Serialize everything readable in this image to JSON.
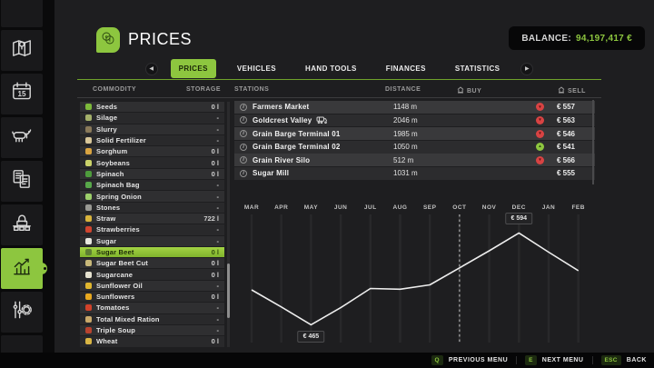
{
  "app": {
    "accent": "#8dc63f",
    "background": "#1e1e20"
  },
  "header": {
    "title": "PRICES",
    "icon": "coins-icon",
    "balance_label": "BALANCE:",
    "balance_value": "94,197,417 €"
  },
  "sidebar": {
    "active_index": 6,
    "calendar_day": "15",
    "items": [
      {
        "name": "blank-top",
        "icon": "none"
      },
      {
        "name": "map",
        "icon": "map-icon"
      },
      {
        "name": "calendar",
        "icon": "calendar-icon"
      },
      {
        "name": "animals",
        "icon": "animal-icon"
      },
      {
        "name": "contracts",
        "icon": "contracts-icon"
      },
      {
        "name": "production",
        "icon": "production-icon"
      },
      {
        "name": "prices",
        "icon": "statistics-icon"
      },
      {
        "name": "settings",
        "icon": "settings-icon"
      },
      {
        "name": "blank-bottom",
        "icon": "none"
      }
    ]
  },
  "tabs": {
    "items": [
      "PRICES",
      "VEHICLES",
      "HAND TOOLS",
      "FINANCES",
      "STATISTICS"
    ],
    "active": "PRICES",
    "left_arrow": "left-arrow-icon",
    "right_arrow": "right-arrow-icon"
  },
  "columns": {
    "commodity": "COMMODITY",
    "storage": "STORAGE",
    "stations": "STATIONS",
    "distance": "DISTANCE",
    "buy": "BUY",
    "sell": "SELL"
  },
  "commodities": [
    {
      "label": "Seeds",
      "storage": "0 l",
      "icon_color": "#7db93b",
      "selected": false
    },
    {
      "label": "Silage",
      "storage": "-",
      "icon_color": "#a4b06a",
      "selected": false
    },
    {
      "label": "Slurry",
      "storage": "-",
      "icon_color": "#8a7a5a",
      "selected": false
    },
    {
      "label": "Solid Fertilizer",
      "storage": "-",
      "icon_color": "#d8c79a",
      "selected": false
    },
    {
      "label": "Sorghum",
      "storage": "0 l",
      "icon_color": "#d9a441",
      "selected": false
    },
    {
      "label": "Soybeans",
      "storage": "0 l",
      "icon_color": "#cbd36a",
      "selected": false
    },
    {
      "label": "Spinach",
      "storage": "0 l",
      "icon_color": "#4e9c3c",
      "selected": false
    },
    {
      "label": "Spinach Bag",
      "storage": "-",
      "icon_color": "#58a84a",
      "selected": false
    },
    {
      "label": "Spring Onion",
      "storage": "-",
      "icon_color": "#9ccf6a",
      "selected": false
    },
    {
      "label": "Stones",
      "storage": "-",
      "icon_color": "#9a9a94",
      "selected": false
    },
    {
      "label": "Straw",
      "storage": "722 l",
      "icon_color": "#d9b43c",
      "selected": false
    },
    {
      "label": "Strawberries",
      "storage": "-",
      "icon_color": "#d0452f",
      "selected": false
    },
    {
      "label": "Sugar",
      "storage": "-",
      "icon_color": "#e8e8e0",
      "selected": false
    },
    {
      "label": "Sugar Beet",
      "storage": "0 l",
      "icon_color": "#5e7f33",
      "selected": true
    },
    {
      "label": "Sugar Beet Cut",
      "storage": "0 l",
      "icon_color": "#c8b87a",
      "selected": false
    },
    {
      "label": "Sugarcane",
      "storage": "0 l",
      "icon_color": "#e6e2d0",
      "selected": false
    },
    {
      "label": "Sunflower Oil",
      "storage": "-",
      "icon_color": "#e0b62f",
      "selected": false
    },
    {
      "label": "Sunflowers",
      "storage": "0 l",
      "icon_color": "#e8a81f",
      "selected": false
    },
    {
      "label": "Tomatoes",
      "storage": "-",
      "icon_color": "#d2422a",
      "selected": false
    },
    {
      "label": "Total Mixed Ration",
      "storage": "-",
      "icon_color": "#c9a96a",
      "selected": false
    },
    {
      "label": "Triple Soup",
      "storage": "-",
      "icon_color": "#b8432f",
      "selected": false
    },
    {
      "label": "Wheat",
      "storage": "0 l",
      "icon_color": "#d9b544",
      "selected": false
    }
  ],
  "stations": [
    {
      "name": "Farmers Market",
      "train": false,
      "distance": "1148 m",
      "sell": "€ 557",
      "trend": "down"
    },
    {
      "name": "Goldcrest Valley",
      "train": true,
      "distance": "2046 m",
      "sell": "€ 563",
      "trend": "down"
    },
    {
      "name": "Grain Barge Terminal 01",
      "train": false,
      "distance": "1985 m",
      "sell": "€ 546",
      "trend": "down"
    },
    {
      "name": "Grain Barge Terminal 02",
      "train": false,
      "distance": "1050 m",
      "sell": "€ 541",
      "trend": "up"
    },
    {
      "name": "Grain River Silo",
      "train": false,
      "distance": "512 m",
      "sell": "€ 566",
      "trend": "down"
    },
    {
      "name": "Sugar Mill",
      "train": false,
      "distance": "1031 m",
      "sell": "€ 555",
      "trend": "none"
    }
  ],
  "chart_data": {
    "type": "line",
    "title": "Sugar Beet price over 12 months",
    "x": [
      "MAR",
      "APR",
      "MAY",
      "JUN",
      "JUL",
      "AUG",
      "SEP",
      "OCT",
      "NOV",
      "DEC",
      "JAN",
      "FEB"
    ],
    "values": [
      514,
      490,
      465,
      489,
      516,
      515,
      521,
      545,
      569,
      594,
      567,
      541
    ],
    "ylim": [
      440,
      620
    ],
    "min_label": {
      "month": "MAY",
      "text": "€ 465"
    },
    "max_label": {
      "month": "DEC",
      "text": "€ 594"
    },
    "current_month_marker": "OCT",
    "grid": "vertical",
    "line_color": "#ededed",
    "legend": "none"
  },
  "footer": {
    "hints": [
      {
        "key": "Q",
        "label": "PREVIOUS MENU"
      },
      {
        "key": "E",
        "label": "NEXT MENU"
      },
      {
        "key": "ESC",
        "label": "BACK"
      }
    ]
  }
}
